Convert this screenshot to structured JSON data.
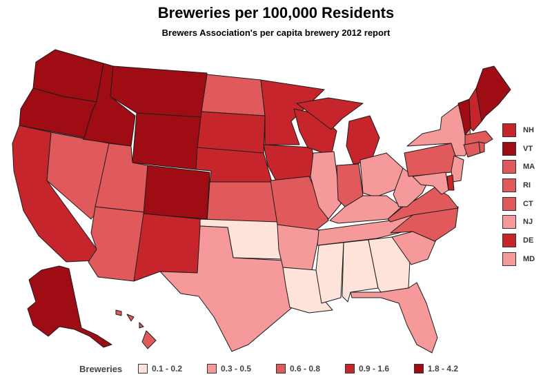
{
  "title": "Breweries per 100,000 Residents",
  "subtitle": "Brewers Association's per capita brewery 2012 report",
  "colors": {
    "0.1 - 0.2": "#fde3da",
    "0.3 - 0.5": "#f5999a",
    "0.6 - 0.8": "#e05a5c",
    "0.9 - 1.6": "#c7252c",
    "1.8 - 4.2": "#a00c14"
  },
  "legend": {
    "title": "Breweries",
    "items": [
      {
        "label": "0.1 - 0.2",
        "color": "#fde3da"
      },
      {
        "label": "0.3 - 0.5",
        "color": "#f5999a"
      },
      {
        "label": "0.6 - 0.8",
        "color": "#e05a5c"
      },
      {
        "label": "0.9 - 1.6",
        "color": "#c7252c"
      },
      {
        "label": "1.8 - 4.2",
        "color": "#a00c14"
      }
    ]
  },
  "small_states": [
    {
      "abbr": "NH",
      "bin": "0.9 - 1.6"
    },
    {
      "abbr": "VT",
      "bin": "1.8 - 4.2"
    },
    {
      "abbr": "MA",
      "bin": "0.6 - 0.8"
    },
    {
      "abbr": "RI",
      "bin": "0.6 - 0.8"
    },
    {
      "abbr": "CT",
      "bin": "0.6 - 0.8"
    },
    {
      "abbr": "NJ",
      "bin": "0.3 - 0.5"
    },
    {
      "abbr": "DE",
      "bin": "0.9 - 1.6"
    },
    {
      "abbr": "MD",
      "bin": "0.3 - 0.5"
    }
  ],
  "chart_data": {
    "type": "choropleth",
    "title": "Breweries per 100,000 Residents",
    "subtitle": "Brewers Association's per capita brewery 2012 report",
    "legend_title": "Breweries",
    "bins": [
      "0.1 - 0.2",
      "0.3 - 0.5",
      "0.6 - 0.8",
      "0.9 - 1.6",
      "1.8 - 4.2"
    ],
    "states": {
      "WA": "1.8 - 4.2",
      "OR": "1.8 - 4.2",
      "CA": "0.9 - 1.6",
      "NV": "0.6 - 0.8",
      "ID": "1.8 - 4.2",
      "MT": "1.8 - 4.2",
      "WY": "1.8 - 4.2",
      "UT": "0.6 - 0.8",
      "AZ": "0.6 - 0.8",
      "CO": "1.8 - 4.2",
      "NM": "0.9 - 1.6",
      "ND": "0.6 - 0.8",
      "SD": "0.9 - 1.6",
      "NE": "0.9 - 1.6",
      "KS": "0.6 - 0.8",
      "OK": "0.1 - 0.2",
      "TX": "0.3 - 0.5",
      "MN": "0.9 - 1.6",
      "IA": "0.9 - 1.6",
      "MO": "0.6 - 0.8",
      "AR": "0.3 - 0.5",
      "LA": "0.1 - 0.2",
      "WI": "0.9 - 1.6",
      "IL": "0.3 - 0.5",
      "MI": "0.9 - 1.6",
      "IN": "0.6 - 0.8",
      "OH": "0.3 - 0.5",
      "KY": "0.3 - 0.5",
      "TN": "0.3 - 0.5",
      "MS": "0.1 - 0.2",
      "AL": "0.1 - 0.2",
      "GA": "0.1 - 0.2",
      "FL": "0.3 - 0.5",
      "SC": "0.3 - 0.5",
      "NC": "0.6 - 0.8",
      "VA": "0.6 - 0.8",
      "WV": "0.3 - 0.5",
      "PA": "0.6 - 0.8",
      "NY": "0.3 - 0.5",
      "NJ": "0.3 - 0.5",
      "DE": "0.9 - 1.6",
      "MD": "0.3 - 0.5",
      "CT": "0.6 - 0.8",
      "RI": "0.6 - 0.8",
      "MA": "0.6 - 0.8",
      "VT": "1.8 - 4.2",
      "NH": "0.9 - 1.6",
      "ME": "1.8 - 4.2",
      "AK": "1.8 - 4.2",
      "HI": "0.6 - 0.8"
    }
  }
}
